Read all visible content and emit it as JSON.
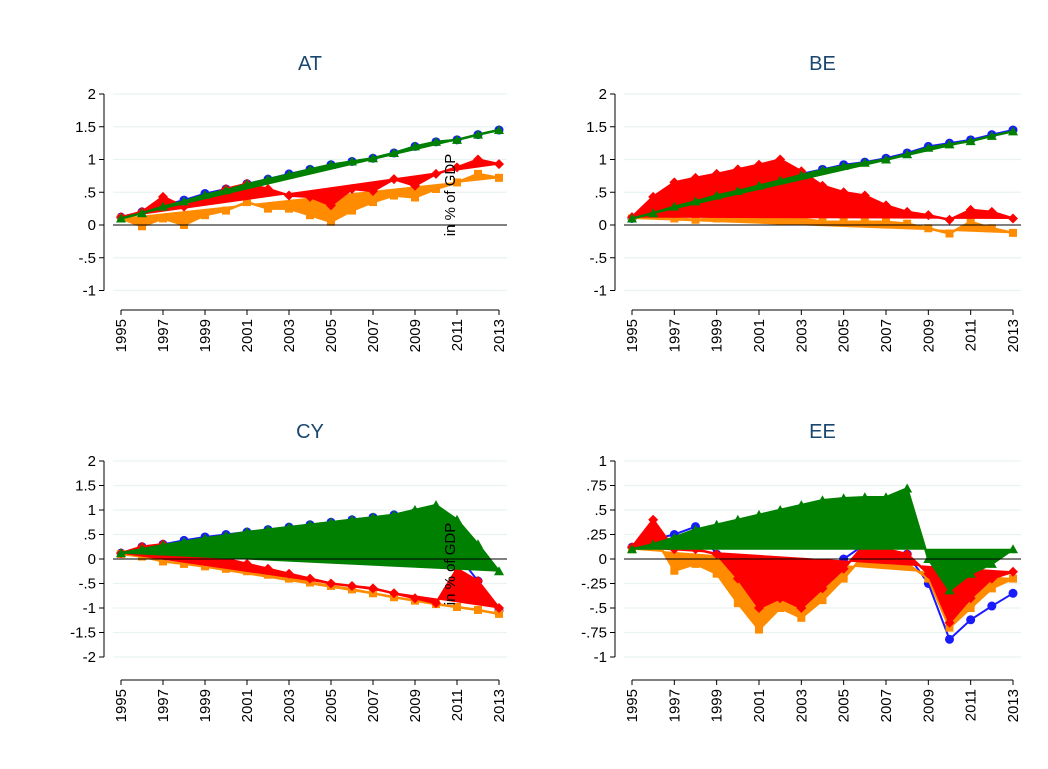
{
  "figure": {
    "ylabel": "in % of GDP"
  },
  "colors": {
    "blue": "#1a1aff",
    "red": "#ff0000",
    "orange": "#ff8c00",
    "green": "#008000",
    "grid": "#eaf2f3",
    "title": "#1a476f"
  },
  "chart_data": [
    {
      "type": "area",
      "title": "AT",
      "ylabel": "",
      "ylim": [
        -1.1,
        2.1
      ],
      "y_ticks": [
        -1,
        -0.5,
        0,
        0.5,
        1,
        1.5,
        2
      ],
      "y_tick_labels": [
        "-1",
        "-.5",
        "0",
        ".5",
        "1",
        "1.5",
        "2"
      ],
      "x": [
        1995,
        1996,
        1997,
        1998,
        1999,
        2000,
        2001,
        2002,
        2003,
        2004,
        2005,
        2006,
        2007,
        2008,
        2009,
        2010,
        2011,
        2012,
        2013
      ],
      "x_ticks": [
        1995,
        1997,
        1999,
        2001,
        2003,
        2005,
        2007,
        2009,
        2011,
        2013
      ],
      "grid": true,
      "series": [
        {
          "color_key": "blue",
          "style": "line-circle",
          "values": [
            0.12,
            0.2,
            0.3,
            0.38,
            0.48,
            0.55,
            0.63,
            0.7,
            0.78,
            0.85,
            0.92,
            0.97,
            1.02,
            1.1,
            1.2,
            1.27,
            1.3,
            1.38,
            1.45
          ]
        },
        {
          "color_key": "red",
          "style": "fill-diamond",
          "values": [
            0.12,
            0.2,
            0.43,
            0.28,
            0.43,
            0.55,
            0.63,
            0.55,
            0.45,
            0.43,
            0.3,
            0.55,
            0.52,
            0.7,
            0.6,
            0.78,
            0.88,
            1.0,
            0.93
          ]
        },
        {
          "color_key": "orange",
          "style": "fill-square",
          "values": [
            0.1,
            -0.02,
            0.1,
            0.0,
            0.15,
            0.22,
            0.35,
            0.25,
            0.25,
            0.15,
            0.05,
            0.22,
            0.35,
            0.45,
            0.42,
            0.55,
            0.65,
            0.78,
            0.72
          ]
        },
        {
          "color_key": "green",
          "style": "fill-triangle",
          "values": [
            0.1,
            0.18,
            0.28,
            0.36,
            0.46,
            0.53,
            0.62,
            0.7,
            0.77,
            0.85,
            0.92,
            0.97,
            1.02,
            1.1,
            1.2,
            1.27,
            1.3,
            1.38,
            1.45
          ]
        }
      ]
    },
    {
      "type": "area",
      "title": "BE",
      "ylabel": "",
      "ylim": [
        -1.1,
        2.1
      ],
      "y_ticks": [
        -1,
        -0.5,
        0,
        0.5,
        1,
        1.5,
        2
      ],
      "y_tick_labels": [
        "-1",
        "-.5",
        "0",
        ".5",
        "1",
        "1.5",
        "2"
      ],
      "x": [
        1995,
        1996,
        1997,
        1998,
        1999,
        2000,
        2001,
        2002,
        2003,
        2004,
        2005,
        2006,
        2007,
        2008,
        2009,
        2010,
        2011,
        2012,
        2013
      ],
      "x_ticks": [
        1995,
        1997,
        1999,
        2001,
        2003,
        2005,
        2007,
        2009,
        2011,
        2013
      ],
      "grid": true,
      "series": [
        {
          "color_key": "blue",
          "style": "line-circle",
          "values": [
            0.1,
            0.2,
            0.3,
            0.38,
            0.46,
            0.55,
            0.63,
            0.7,
            0.78,
            0.85,
            0.92,
            0.96,
            1.02,
            1.1,
            1.2,
            1.25,
            1.3,
            1.38,
            1.45
          ]
        },
        {
          "color_key": "red",
          "style": "fill-diamond",
          "values": [
            0.12,
            0.43,
            0.65,
            0.72,
            0.78,
            0.85,
            0.92,
            1.0,
            0.82,
            0.6,
            0.5,
            0.45,
            0.3,
            0.2,
            0.15,
            0.08,
            0.23,
            0.2,
            0.1
          ]
        },
        {
          "color_key": "orange",
          "style": "fill-square",
          "values": [
            0.1,
            0.15,
            0.1,
            0.08,
            0.1,
            0.1,
            0.1,
            0.1,
            0.1,
            0.05,
            0.05,
            0.05,
            0.05,
            0.02,
            -0.05,
            -0.13,
            0.05,
            -0.05,
            -0.12
          ]
        },
        {
          "color_key": "green",
          "style": "fill-triangle",
          "values": [
            0.1,
            0.18,
            0.28,
            0.36,
            0.45,
            0.52,
            0.6,
            0.68,
            0.76,
            0.84,
            0.9,
            0.95,
            1.0,
            1.08,
            1.18,
            1.23,
            1.28,
            1.36,
            1.43
          ]
        }
      ]
    },
    {
      "type": "area",
      "title": "CY",
      "ylabel": "",
      "ylim": [
        -2.2,
        2.2
      ],
      "y_ticks": [
        -2,
        -1.5,
        -1,
        -0.5,
        0,
        0.5,
        1,
        1.5,
        2
      ],
      "y_tick_labels": [
        "-2",
        "-1.5",
        "-1",
        "-.5",
        "0",
        ".5",
        "1",
        "1.5",
        "2"
      ],
      "x": [
        1995,
        1996,
        1997,
        1998,
        1999,
        2000,
        2001,
        2002,
        2003,
        2004,
        2005,
        2006,
        2007,
        2008,
        2009,
        2010,
        2011,
        2012,
        2013
      ],
      "x_ticks": [
        1995,
        1997,
        1999,
        2001,
        2003,
        2005,
        2007,
        2009,
        2011,
        2013
      ],
      "grid": true,
      "series": [
        {
          "color_key": "blue",
          "style": "line-circle",
          "values": [
            0.12,
            0.25,
            0.3,
            0.38,
            0.45,
            0.5,
            0.55,
            0.6,
            0.65,
            0.7,
            0.75,
            0.8,
            0.85,
            0.9,
            0.95,
            1.0,
            0.1,
            -0.45,
            -1.05
          ]
        },
        {
          "color_key": "red",
          "style": "fill-diamond",
          "values": [
            0.12,
            0.25,
            0.3,
            0.2,
            0.1,
            0.0,
            -0.1,
            -0.2,
            -0.3,
            -0.4,
            -0.5,
            -0.55,
            -0.6,
            -0.7,
            -0.8,
            -0.9,
            -0.2,
            -0.45,
            -1.0
          ]
        },
        {
          "color_key": "orange",
          "style": "fill-square",
          "values": [
            0.1,
            0.05,
            -0.05,
            -0.1,
            -0.15,
            -0.2,
            -0.25,
            -0.32,
            -0.4,
            -0.48,
            -0.55,
            -0.62,
            -0.7,
            -0.78,
            -0.85,
            -0.92,
            -0.98,
            -1.04,
            -1.12
          ]
        },
        {
          "color_key": "green",
          "style": "fill-triangle",
          "values": [
            0.12,
            0.2,
            0.28,
            0.35,
            0.42,
            0.48,
            0.55,
            0.6,
            0.65,
            0.7,
            0.75,
            0.8,
            0.85,
            0.9,
            1.0,
            1.1,
            0.8,
            0.3,
            -0.25
          ]
        }
      ]
    },
    {
      "type": "area",
      "title": "EE",
      "ylabel": "",
      "ylim": [
        -1.1,
        1.1
      ],
      "y_ticks": [
        -1,
        -0.75,
        -0.5,
        -0.25,
        0,
        0.25,
        0.5,
        0.75,
        1
      ],
      "y_tick_labels": [
        "-1",
        "-.75",
        "-.5",
        "-.25",
        "0",
        ".25",
        ".5",
        ".75",
        "1"
      ],
      "x": [
        1995,
        1996,
        1997,
        1998,
        1999,
        2000,
        2001,
        2002,
        2003,
        2004,
        2005,
        2006,
        2007,
        2008,
        2009,
        2010,
        2011,
        2012,
        2013
      ],
      "x_ticks": [
        1995,
        1997,
        1999,
        2001,
        2003,
        2005,
        2007,
        2009,
        2011,
        2013
      ],
      "grid": true,
      "series": [
        {
          "color_key": "blue",
          "style": "line-circle",
          "values": [
            0.12,
            0.2,
            0.25,
            0.33,
            0.05,
            -0.12,
            -0.5,
            -0.4,
            -0.5,
            -0.3,
            0.0,
            0.15,
            0.1,
            0.05,
            -0.25,
            -0.82,
            -0.62,
            -0.48,
            -0.35
          ]
        },
        {
          "color_key": "red",
          "style": "fill-diamond",
          "values": [
            0.12,
            0.4,
            0.1,
            0.1,
            0.05,
            -0.2,
            -0.5,
            -0.4,
            -0.5,
            -0.3,
            -0.1,
            0.15,
            0.1,
            0.05,
            -0.15,
            -0.65,
            -0.4,
            -0.2,
            -0.13
          ]
        },
        {
          "color_key": "orange",
          "style": "fill-square",
          "values": [
            0.1,
            0.25,
            -0.12,
            -0.05,
            -0.15,
            -0.45,
            -0.72,
            -0.5,
            -0.6,
            -0.42,
            -0.2,
            0.05,
            0.0,
            -0.05,
            -0.2,
            -0.7,
            -0.5,
            -0.3,
            -0.2
          ]
        },
        {
          "color_key": "green",
          "style": "fill-triangle",
          "values": [
            0.1,
            0.15,
            0.22,
            0.3,
            0.35,
            0.4,
            0.45,
            0.5,
            0.55,
            0.6,
            0.62,
            0.63,
            0.63,
            0.72,
            0.0,
            -0.32,
            -0.15,
            -0.05,
            0.1
          ]
        }
      ]
    }
  ]
}
